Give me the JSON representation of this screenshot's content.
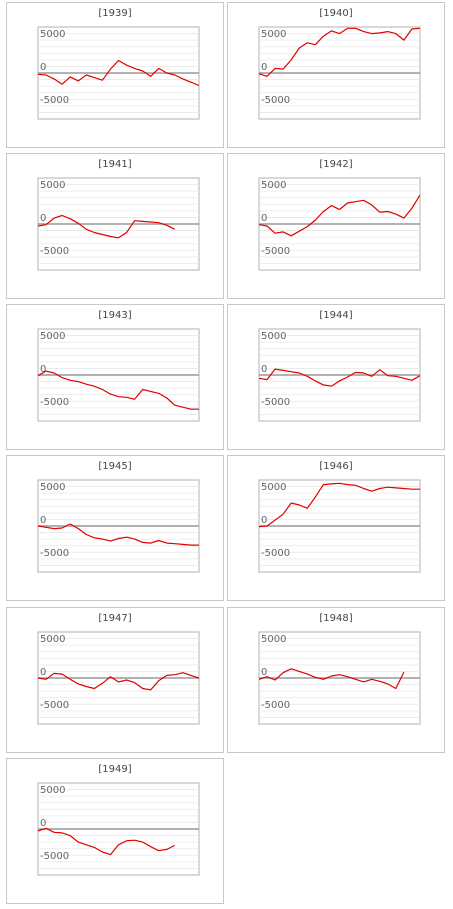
{
  "colors": {
    "line": "#e00000",
    "zero_line": "#999999",
    "grid": "#e8e8e8",
    "frame": "#cccccc"
  },
  "chart_data": [
    {
      "type": "line",
      "title": "[1939]",
      "ylim": [
        -7000,
        7000
      ],
      "yticks": [
        5000,
        0,
        -5000
      ],
      "xlim": [
        0,
        20
      ],
      "x": [
        0,
        1,
        2,
        3,
        4,
        5,
        6,
        7,
        8,
        9,
        10,
        11,
        12,
        13,
        14,
        15,
        16,
        17,
        18,
        19,
        20
      ],
      "values": [
        -200,
        -300,
        -900,
        -1700,
        -600,
        -1200,
        -300,
        -700,
        -1100,
        600,
        1900,
        1200,
        700,
        300,
        -500,
        700,
        0,
        -300,
        -900,
        -1400,
        -1900
      ]
    },
    {
      "type": "line",
      "title": "[1940]",
      "ylim": [
        -7000,
        7000
      ],
      "yticks": [
        5000,
        0,
        -5000
      ],
      "xlim": [
        0,
        20
      ],
      "x": [
        0,
        1,
        2,
        3,
        4,
        5,
        6,
        7,
        8,
        9,
        10,
        11,
        12,
        13,
        14,
        15,
        16,
        17,
        18,
        19,
        20
      ],
      "values": [
        -100,
        -500,
        700,
        600,
        2000,
        3800,
        4600,
        4300,
        5600,
        6400,
        6000,
        6800,
        6800,
        6300,
        6000,
        6100,
        6300,
        6000,
        5000,
        6700,
        6800
      ]
    },
    {
      "type": "line",
      "title": "[1941]",
      "ylim": [
        -7000,
        7000
      ],
      "yticks": [
        5000,
        0,
        -5000
      ],
      "xlim": [
        0,
        20
      ],
      "x": [
        0,
        1,
        2,
        3,
        4,
        5,
        6,
        7,
        8,
        9,
        10,
        11,
        12,
        13,
        14,
        15,
        16,
        17
      ],
      "values": [
        -300,
        -100,
        900,
        1300,
        800,
        100,
        -800,
        -1300,
        -1600,
        -1900,
        -2100,
        -1300,
        500,
        400,
        300,
        200,
        -200,
        -800
      ]
    },
    {
      "type": "line",
      "title": "[1942]",
      "ylim": [
        -7000,
        7000
      ],
      "yticks": [
        5000,
        0,
        -5000
      ],
      "xlim": [
        0,
        20
      ],
      "x": [
        0,
        1,
        2,
        3,
        4,
        5,
        6,
        7,
        8,
        9,
        10,
        11,
        12,
        13,
        14,
        15,
        16,
        17,
        18,
        19,
        20
      ],
      "values": [
        -100,
        -300,
        -1400,
        -1200,
        -1800,
        -1100,
        -400,
        600,
        1900,
        2800,
        2200,
        3200,
        3400,
        3600,
        2900,
        1800,
        1900,
        1500,
        900,
        2400,
        4400
      ]
    },
    {
      "type": "line",
      "title": "[1943]",
      "ylim": [
        -7000,
        7000
      ],
      "yticks": [
        5000,
        0,
        -5000
      ],
      "xlim": [
        0,
        20
      ],
      "x": [
        0,
        1,
        2,
        3,
        4,
        5,
        6,
        7,
        8,
        9,
        10,
        11,
        12,
        13,
        14,
        15,
        16,
        17,
        18,
        19,
        20
      ],
      "values": [
        -100,
        600,
        300,
        -400,
        -800,
        -1000,
        -1400,
        -1700,
        -2200,
        -2900,
        -3300,
        -3400,
        -3700,
        -2200,
        -2500,
        -2800,
        -3500,
        -4600,
        -4900,
        -5200,
        -5200
      ]
    },
    {
      "type": "line",
      "title": "[1944]",
      "ylim": [
        -7000,
        7000
      ],
      "yticks": [
        5000,
        0,
        -5000
      ],
      "xlim": [
        0,
        20
      ],
      "x": [
        0,
        1,
        2,
        3,
        4,
        5,
        6,
        7,
        8,
        9,
        10,
        11,
        12,
        13,
        14,
        15,
        16,
        17,
        18,
        19,
        20
      ],
      "values": [
        -500,
        -700,
        900,
        700,
        500,
        300,
        -200,
        -900,
        -1500,
        -1700,
        -900,
        -300,
        400,
        300,
        -200,
        800,
        -100,
        -200,
        -500,
        -800,
        -100
      ]
    },
    {
      "type": "line",
      "title": "[1945]",
      "ylim": [
        -7000,
        7000
      ],
      "yticks": [
        5000,
        0,
        -5000
      ],
      "xlim": [
        0,
        20
      ],
      "x": [
        0,
        1,
        2,
        3,
        4,
        5,
        6,
        7,
        8,
        9,
        10,
        11,
        12,
        13,
        14,
        15,
        16,
        17,
        18,
        19,
        20
      ],
      "values": [
        0,
        -200,
        -400,
        -300,
        300,
        -400,
        -1300,
        -1800,
        -2000,
        -2300,
        -1900,
        -1700,
        -2000,
        -2500,
        -2600,
        -2200,
        -2600,
        -2700,
        -2800,
        -2900,
        -2900
      ]
    },
    {
      "type": "line",
      "title": "[1946]",
      "ylim": [
        -7000,
        7000
      ],
      "yticks": [
        5000,
        0,
        -5000
      ],
      "xlim": [
        0,
        20
      ],
      "x": [
        0,
        1,
        2,
        3,
        4,
        5,
        6,
        7,
        8,
        9,
        10,
        11,
        12,
        13,
        14,
        15,
        16,
        17,
        18,
        19,
        20
      ],
      "values": [
        -100,
        0,
        900,
        1800,
        3500,
        3200,
        2700,
        4400,
        6300,
        6400,
        6500,
        6300,
        6200,
        5700,
        5300,
        5700,
        5900,
        5800,
        5700,
        5600,
        5600
      ]
    },
    {
      "type": "line",
      "title": "[1947]",
      "ylim": [
        -7000,
        7000
      ],
      "yticks": [
        5000,
        0,
        -5000
      ],
      "xlim": [
        0,
        20
      ],
      "x": [
        0,
        1,
        2,
        3,
        4,
        5,
        6,
        7,
        8,
        9,
        10,
        11,
        12,
        13,
        14,
        15,
        16,
        17,
        18,
        19,
        20
      ],
      "values": [
        0,
        -200,
        700,
        600,
        -200,
        -900,
        -1300,
        -1600,
        -800,
        200,
        -600,
        -300,
        -700,
        -1600,
        -1800,
        -400,
        400,
        500,
        800,
        400,
        0
      ]
    },
    {
      "type": "line",
      "title": "[1948]",
      "ylim": [
        -7000,
        7000
      ],
      "yticks": [
        5000,
        0,
        -5000
      ],
      "xlim": [
        0,
        20
      ],
      "x": [
        0,
        1,
        2,
        3,
        4,
        5,
        6,
        7,
        8,
        9,
        10,
        11,
        12,
        13,
        14,
        15,
        16,
        17,
        18
      ],
      "values": [
        -200,
        200,
        -300,
        800,
        1400,
        1000,
        600,
        100,
        -200,
        300,
        500,
        200,
        -200,
        -600,
        -200,
        -500,
        -900,
        -1600,
        900
      ]
    },
    {
      "type": "line",
      "title": "[1949]",
      "ylim": [
        -7000,
        7000
      ],
      "yticks": [
        5000,
        0,
        -5000
      ],
      "xlim": [
        0,
        20
      ],
      "x": [
        0,
        1,
        2,
        3,
        4,
        5,
        6,
        7,
        8,
        9,
        10,
        11,
        12,
        13,
        14,
        15,
        16,
        17
      ],
      "values": [
        -300,
        100,
        -500,
        -600,
        -1000,
        -2000,
        -2400,
        -2800,
        -3500,
        -3900,
        -2400,
        -1800,
        -1700,
        -2000,
        -2700,
        -3300,
        -3100,
        -2500
      ]
    }
  ]
}
